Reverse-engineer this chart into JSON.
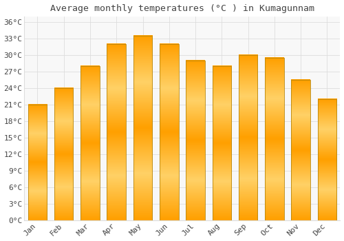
{
  "title": "Average monthly temperatures (°C ) in Kumagunnam",
  "months": [
    "Jan",
    "Feb",
    "Mar",
    "Apr",
    "May",
    "Jun",
    "Jul",
    "Aug",
    "Sep",
    "Oct",
    "Nov",
    "Dec"
  ],
  "values": [
    21,
    24,
    28,
    32,
    33.5,
    32,
    29,
    28,
    30,
    29.5,
    25.5,
    22
  ],
  "bar_color_center": "#FFD166",
  "bar_color_edge": "#FFA000",
  "bar_outline_color": "#B8860B",
  "background_color": "#FFFFFF",
  "plot_bg_color": "#F8F8F8",
  "grid_color": "#DDDDDD",
  "text_color": "#444444",
  "title_fontsize": 9.5,
  "tick_fontsize": 8,
  "ylim": [
    0,
    37
  ],
  "yticks": [
    0,
    3,
    6,
    9,
    12,
    15,
    18,
    21,
    24,
    27,
    30,
    33,
    36
  ]
}
